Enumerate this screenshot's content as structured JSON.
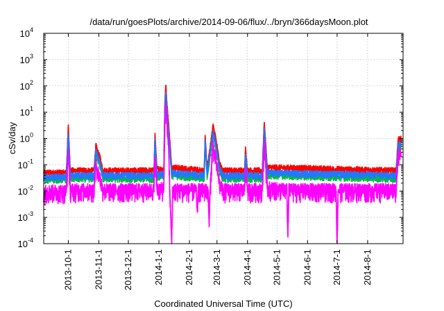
{
  "chart_data": {
    "type": "line",
    "title": "/data/run/goesPlots/archive/2014-09-06/flux/../bryn/366daysMoon.plot",
    "xlabel": "Coordinated Universal Time (UTC)",
    "ylabel": "cSv/day",
    "yscale": "log",
    "ylim": [
      0.0001,
      10000
    ],
    "xlim": [
      "2013-09-06",
      "2014-09-06"
    ],
    "grid": true,
    "legend": "none",
    "y_ticks": [
      {
        "value": 0.0001,
        "base": "10",
        "exp": "-4"
      },
      {
        "value": 0.001,
        "base": "10",
        "exp": "-3"
      },
      {
        "value": 0.01,
        "base": "10",
        "exp": "-2"
      },
      {
        "value": 0.1,
        "base": "10",
        "exp": "-1"
      },
      {
        "value": 1,
        "base": "10",
        "exp": "0"
      },
      {
        "value": 10,
        "base": "10",
        "exp": "1"
      },
      {
        "value": 100,
        "base": "10",
        "exp": "2"
      },
      {
        "value": 1000,
        "base": "10",
        "exp": "3"
      },
      {
        "value": 10000,
        "base": "10",
        "exp": "4"
      }
    ],
    "x_ticks": [
      {
        "date": "2013-10-01",
        "label": "2013-10-1"
      },
      {
        "date": "2013-11-01",
        "label": "2013-11-1"
      },
      {
        "date": "2013-12-01",
        "label": "2013-12-1"
      },
      {
        "date": "2014-01-01",
        "label": "2014-1-1"
      },
      {
        "date": "2014-02-01",
        "label": "2014-2-1"
      },
      {
        "date": "2014-03-01",
        "label": "2014-3-1"
      },
      {
        "date": "2014-04-01",
        "label": "2014-4-1"
      },
      {
        "date": "2014-05-01",
        "label": "2014-5-1"
      },
      {
        "date": "2014-06-01",
        "label": "2014-6-1"
      },
      {
        "date": "2014-07-01",
        "label": "2014-7-1"
      },
      {
        "date": "2014-08-01",
        "label": "2014-8-1"
      }
    ],
    "data_end": "2014-09-04",
    "series": [
      {
        "color": "#ff0000",
        "baseline": 0.05,
        "points": [
          [
            "2013-09-06",
            0.05
          ],
          [
            "2013-09-29",
            0.05
          ],
          [
            "2013-10-01",
            2.8
          ],
          [
            "2013-10-03",
            0.06
          ],
          [
            "2013-10-27",
            0.06
          ],
          [
            "2013-10-29",
            0.55
          ],
          [
            "2013-10-31",
            0.3
          ],
          [
            "2013-11-02",
            0.2
          ],
          [
            "2013-11-05",
            0.06
          ],
          [
            "2013-12-15",
            0.06
          ],
          [
            "2013-12-27",
            0.06
          ],
          [
            "2013-12-28",
            1.4
          ],
          [
            "2013-12-30",
            0.07
          ],
          [
            "2014-01-06",
            0.07
          ],
          [
            "2014-01-07",
            20
          ],
          [
            "2014-01-08",
            110
          ],
          [
            "2014-01-09",
            25
          ],
          [
            "2014-01-11",
            3
          ],
          [
            "2014-01-14",
            0.08
          ],
          [
            "2014-02-16",
            0.06
          ],
          [
            "2014-02-17",
            1.2
          ],
          [
            "2014-02-19",
            0.07
          ],
          [
            "2014-02-24",
            1.5
          ],
          [
            "2014-02-25",
            3.2
          ],
          [
            "2014-02-28",
            0.9
          ],
          [
            "2014-03-04",
            0.1
          ],
          [
            "2014-03-07",
            0.06
          ],
          [
            "2014-03-29",
            0.06
          ],
          [
            "2014-03-30",
            0.4
          ],
          [
            "2014-04-01",
            0.06
          ],
          [
            "2014-04-16",
            0.06
          ],
          [
            "2014-04-18",
            4.2
          ],
          [
            "2014-04-21",
            0.08
          ],
          [
            "2014-08-30",
            0.06
          ],
          [
            "2014-09-01",
            0.95
          ],
          [
            "2014-09-04",
            0.95
          ]
        ]
      },
      {
        "color": "#00bb44",
        "baseline": 0.028,
        "points": [
          [
            "2013-09-06",
            0.028
          ],
          [
            "2013-09-29",
            0.028
          ],
          [
            "2013-10-01",
            1.2
          ],
          [
            "2013-10-03",
            0.03
          ],
          [
            "2013-10-27",
            0.03
          ],
          [
            "2013-10-29",
            0.3
          ],
          [
            "2013-10-31",
            0.15
          ],
          [
            "2013-11-02",
            0.1
          ],
          [
            "2013-11-05",
            0.03
          ],
          [
            "2013-12-27",
            0.03
          ],
          [
            "2013-12-28",
            0.6
          ],
          [
            "2013-12-30",
            0.035
          ],
          [
            "2014-01-06",
            0.035
          ],
          [
            "2014-01-07",
            8
          ],
          [
            "2014-01-08",
            45
          ],
          [
            "2014-01-09",
            10
          ],
          [
            "2014-01-11",
            1.2
          ],
          [
            "2014-01-14",
            0.04
          ],
          [
            "2014-02-16",
            0.03
          ],
          [
            "2014-02-17",
            0.6
          ],
          [
            "2014-02-19",
            0.035
          ],
          [
            "2014-02-24",
            0.7
          ],
          [
            "2014-02-25",
            1.3
          ],
          [
            "2014-02-28",
            0.4
          ],
          [
            "2014-03-04",
            0.05
          ],
          [
            "2014-03-07",
            0.03
          ],
          [
            "2014-03-29",
            0.03
          ],
          [
            "2014-03-30",
            0.2
          ],
          [
            "2014-04-01",
            0.03
          ],
          [
            "2014-04-16",
            0.03
          ],
          [
            "2014-04-18",
            1.8
          ],
          [
            "2014-04-21",
            0.04
          ],
          [
            "2014-08-30",
            0.03
          ],
          [
            "2014-09-01",
            0.45
          ],
          [
            "2014-09-04",
            0.45
          ]
        ]
      },
      {
        "color": "#2277ff",
        "baseline": 0.035,
        "points": [
          [
            "2013-09-06",
            0.035
          ],
          [
            "2013-09-29",
            0.035
          ],
          [
            "2013-10-01",
            1.6
          ],
          [
            "2013-10-03",
            0.04
          ],
          [
            "2013-10-27",
            0.04
          ],
          [
            "2013-10-29",
            0.4
          ],
          [
            "2013-10-31",
            0.2
          ],
          [
            "2013-11-02",
            0.13
          ],
          [
            "2013-11-05",
            0.04
          ],
          [
            "2013-12-27",
            0.04
          ],
          [
            "2013-12-28",
            0.8
          ],
          [
            "2013-12-30",
            0.045
          ],
          [
            "2014-01-06",
            0.045
          ],
          [
            "2014-01-07",
            12
          ],
          [
            "2014-01-08",
            60
          ],
          [
            "2014-01-09",
            14
          ],
          [
            "2014-01-11",
            1.6
          ],
          [
            "2014-01-14",
            0.05
          ],
          [
            "2014-02-16",
            0.04
          ],
          [
            "2014-02-17",
            0.8
          ],
          [
            "2014-02-19",
            0.045
          ],
          [
            "2014-02-24",
            0.9
          ],
          [
            "2014-02-25",
            1.8
          ],
          [
            "2014-02-28",
            0.55
          ],
          [
            "2014-03-04",
            0.065
          ],
          [
            "2014-03-07",
            0.04
          ],
          [
            "2014-03-29",
            0.04
          ],
          [
            "2014-03-30",
            0.25
          ],
          [
            "2014-04-01",
            0.04
          ],
          [
            "2014-04-16",
            0.04
          ],
          [
            "2014-04-18",
            2.5
          ],
          [
            "2014-04-21",
            0.05
          ],
          [
            "2014-08-30",
            0.04
          ],
          [
            "2014-09-01",
            0.6
          ],
          [
            "2014-09-04",
            0.6
          ]
        ]
      },
      {
        "color": "#ff00ff",
        "baseline": 0.009,
        "points": [
          [
            "2013-09-06",
            0.009
          ],
          [
            "2013-09-29",
            0.009
          ],
          [
            "2013-10-01",
            0.3
          ],
          [
            "2013-10-03",
            0.01
          ],
          [
            "2013-10-27",
            0.01
          ],
          [
            "2013-10-29",
            0.1
          ],
          [
            "2013-10-31",
            0.05
          ],
          [
            "2013-11-02",
            0.03
          ],
          [
            "2013-11-05",
            0.01
          ],
          [
            "2013-12-27",
            0.01
          ],
          [
            "2013-12-28",
            0.2
          ],
          [
            "2013-12-30",
            0.011
          ],
          [
            "2014-01-06",
            0.011
          ],
          [
            "2014-01-07",
            3
          ],
          [
            "2014-01-08",
            20
          ],
          [
            "2014-01-09",
            4
          ],
          [
            "2014-01-11",
            0.4
          ],
          [
            "2014-01-12",
            0.01
          ],
          [
            "2014-01-14",
            0.0001
          ],
          [
            "2014-01-15",
            0.01
          ],
          [
            "2014-02-08",
            0.01
          ],
          [
            "2014-02-09",
            0.0015
          ],
          [
            "2014-02-10",
            0.01
          ],
          [
            "2014-02-20",
            0.01
          ],
          [
            "2014-02-21",
            0.0005
          ],
          [
            "2014-02-22",
            0.01
          ],
          [
            "2014-02-24",
            0.2
          ],
          [
            "2014-02-25",
            0.5
          ],
          [
            "2014-02-28",
            0.12
          ],
          [
            "2014-03-04",
            0.015
          ],
          [
            "2014-03-07",
            0.01
          ],
          [
            "2014-03-29",
            0.01
          ],
          [
            "2014-03-30",
            0.07
          ],
          [
            "2014-04-01",
            0.01
          ],
          [
            "2014-04-16",
            0.01
          ],
          [
            "2014-04-18",
            0.6
          ],
          [
            "2014-04-21",
            0.012
          ],
          [
            "2014-05-11",
            0.01
          ],
          [
            "2014-05-12",
            0.0002
          ],
          [
            "2014-05-13",
            0.01
          ],
          [
            "2014-06-30",
            0.01
          ],
          [
            "2014-07-01",
            0.0001
          ],
          [
            "2014-07-02",
            0.01
          ],
          [
            "2014-08-30",
            0.01
          ],
          [
            "2014-09-01",
            0.25
          ],
          [
            "2014-09-04",
            0.25
          ]
        ]
      }
    ]
  }
}
